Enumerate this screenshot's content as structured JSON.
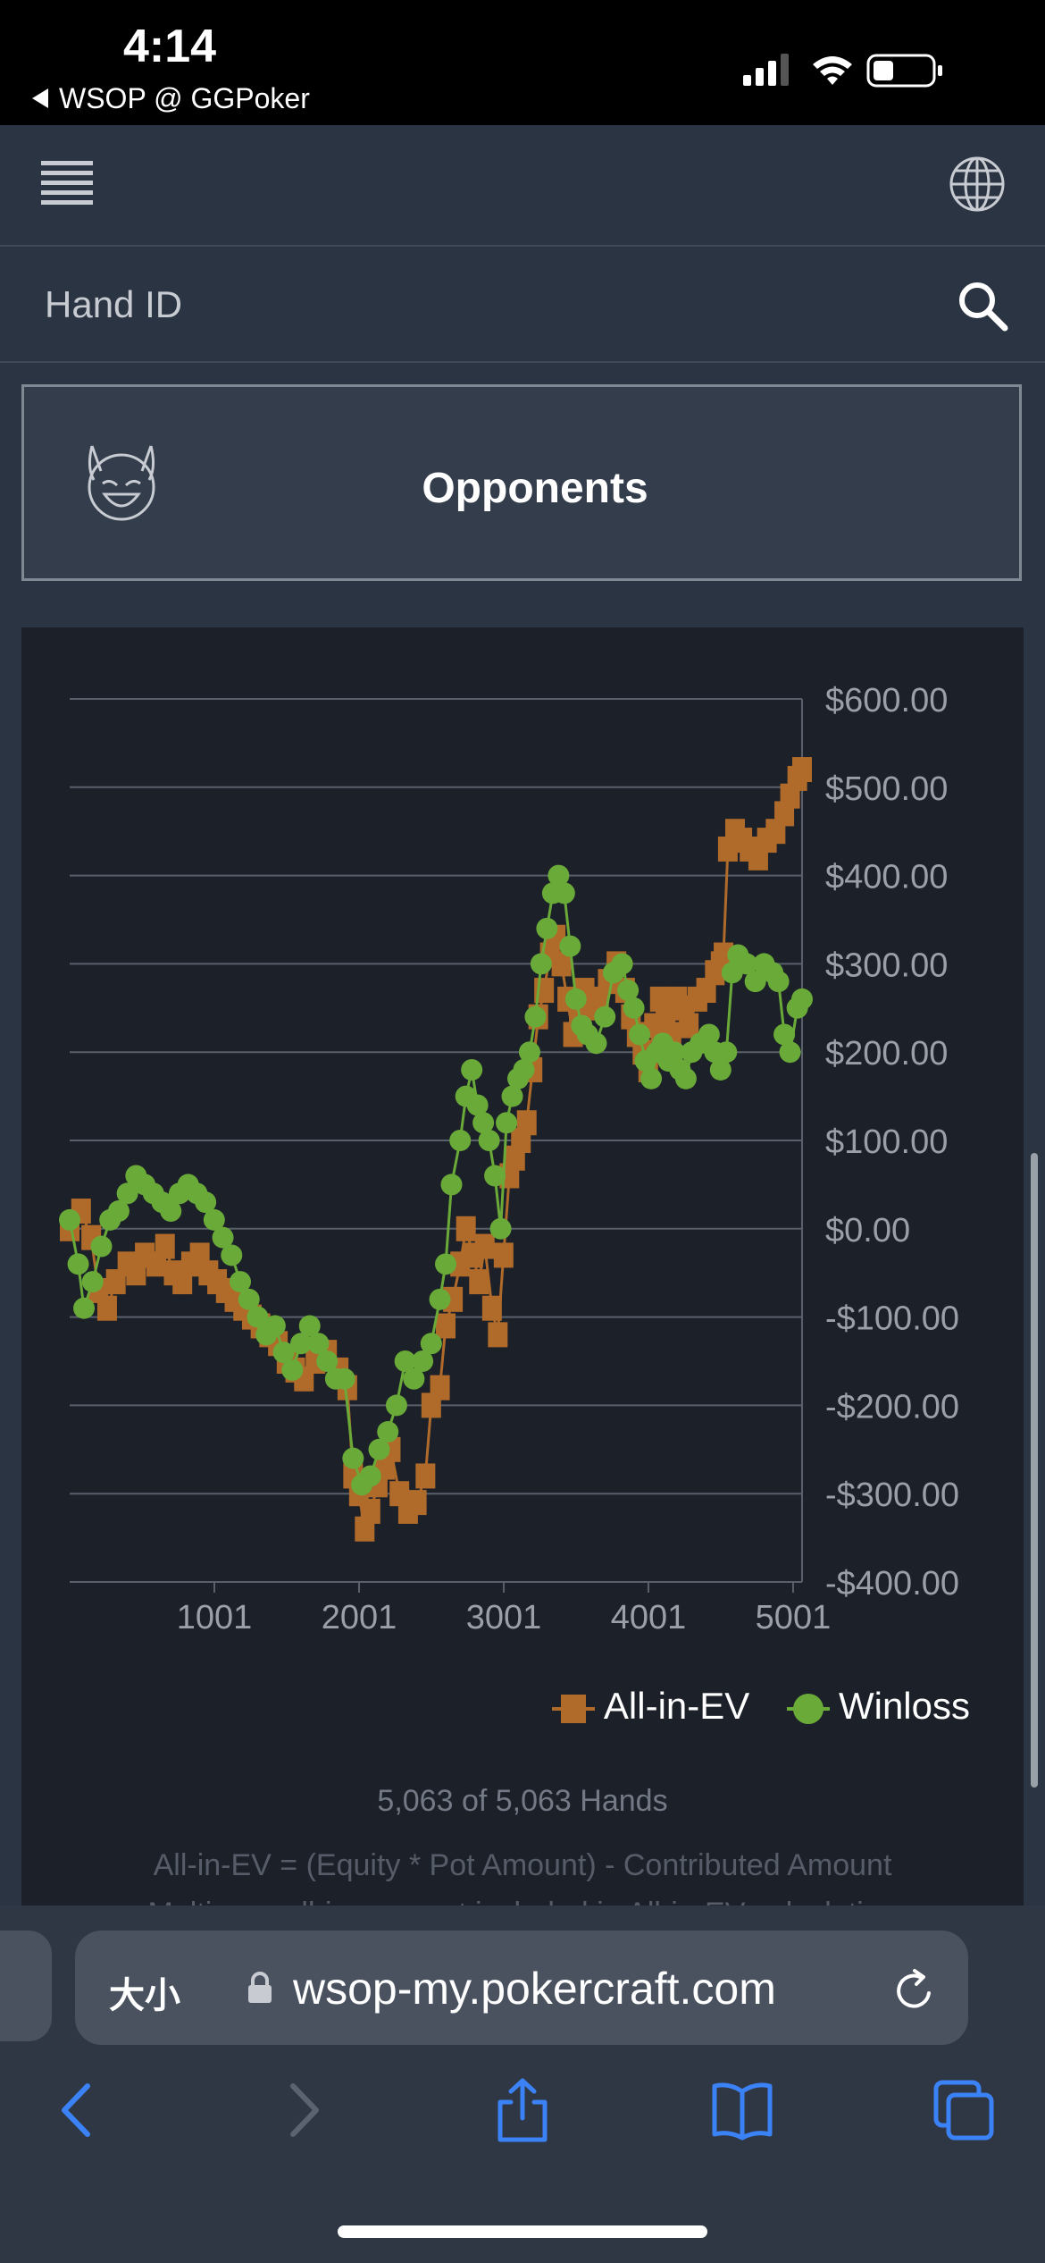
{
  "status_bar": {
    "time": "4:14",
    "back_app": "WSOP @ GGPoker"
  },
  "search": {
    "placeholder": "Hand ID"
  },
  "opponents": {
    "label": "Opponents"
  },
  "chart_data": {
    "type": "line",
    "x_ticks": [
      1001,
      2001,
      3001,
      4001,
      5001
    ],
    "x_tick_labels": [
      "1001",
      "2001",
      "3001",
      "4001",
      "5001"
    ],
    "y_ticks": [
      600,
      500,
      400,
      300,
      200,
      100,
      0,
      -100,
      -200,
      -300,
      -400
    ],
    "y_tick_labels": [
      "$600.00",
      "$500.00",
      "$400.00",
      "$300.00",
      "$200.00",
      "$100.00",
      "$0.00",
      "-$100.00",
      "-$200.00",
      "-$300.00",
      "-$400.00"
    ],
    "xlim": [
      1,
      5063
    ],
    "ylim": [
      -400,
      600
    ],
    "legend_position": "bottom-right",
    "grid": true,
    "series": [
      {
        "name": "All-in-EV",
        "color": "#b06a2a",
        "marker": "square",
        "points": [
          [
            1,
            0
          ],
          [
            80,
            20
          ],
          [
            150,
            -10
          ],
          [
            200,
            -70
          ],
          [
            260,
            -90
          ],
          [
            320,
            -60
          ],
          [
            400,
            -40
          ],
          [
            460,
            -50
          ],
          [
            520,
            -30
          ],
          [
            600,
            -40
          ],
          [
            660,
            -20
          ],
          [
            720,
            -50
          ],
          [
            780,
            -60
          ],
          [
            840,
            -40
          ],
          [
            900,
            -30
          ],
          [
            960,
            -50
          ],
          [
            1020,
            -60
          ],
          [
            1080,
            -70
          ],
          [
            1140,
            -80
          ],
          [
            1200,
            -90
          ],
          [
            1260,
            -100
          ],
          [
            1320,
            -110
          ],
          [
            1380,
            -120
          ],
          [
            1440,
            -130
          ],
          [
            1500,
            -150
          ],
          [
            1560,
            -160
          ],
          [
            1620,
            -170
          ],
          [
            1700,
            -150
          ],
          [
            1780,
            -140
          ],
          [
            1860,
            -160
          ],
          [
            1920,
            -180
          ],
          [
            1960,
            -280
          ],
          [
            2000,
            -300
          ],
          [
            2040,
            -340
          ],
          [
            2080,
            -320
          ],
          [
            2130,
            -290
          ],
          [
            2180,
            -270
          ],
          [
            2220,
            -250
          ],
          [
            2280,
            -300
          ],
          [
            2340,
            -320
          ],
          [
            2400,
            -310
          ],
          [
            2460,
            -280
          ],
          [
            2500,
            -200
          ],
          [
            2560,
            -180
          ],
          [
            2600,
            -110
          ],
          [
            2650,
            -80
          ],
          [
            2700,
            -40
          ],
          [
            2740,
            0
          ],
          [
            2790,
            -30
          ],
          [
            2830,
            -60
          ],
          [
            2870,
            -20
          ],
          [
            2920,
            -90
          ],
          [
            2960,
            -120
          ],
          [
            3000,
            -30
          ],
          [
            3040,
            60
          ],
          [
            3080,
            80
          ],
          [
            3120,
            100
          ],
          [
            3160,
            120
          ],
          [
            3200,
            180
          ],
          [
            3240,
            240
          ],
          [
            3280,
            270
          ],
          [
            3320,
            310
          ],
          [
            3360,
            330
          ],
          [
            3400,
            300
          ],
          [
            3440,
            260
          ],
          [
            3480,
            220
          ],
          [
            3520,
            240
          ],
          [
            3560,
            270
          ],
          [
            3600,
            250
          ],
          [
            3660,
            260
          ],
          [
            3720,
            280
          ],
          [
            3780,
            300
          ],
          [
            3840,
            270
          ],
          [
            3880,
            240
          ],
          [
            3920,
            220
          ],
          [
            3960,
            200
          ],
          [
            4000,
            180
          ],
          [
            4040,
            230
          ],
          [
            4080,
            260
          ],
          [
            4120,
            240
          ],
          [
            4160,
            220
          ],
          [
            4200,
            260
          ],
          [
            4240,
            250
          ],
          [
            4280,
            230
          ],
          [
            4340,
            260
          ],
          [
            4400,
            270
          ],
          [
            4460,
            290
          ],
          [
            4500,
            300
          ],
          [
            4520,
            310
          ],
          [
            4550,
            430
          ],
          [
            4600,
            450
          ],
          [
            4650,
            440
          ],
          [
            4700,
            430
          ],
          [
            4760,
            420
          ],
          [
            4820,
            440
          ],
          [
            4880,
            450
          ],
          [
            4940,
            470
          ],
          [
            4980,
            490
          ],
          [
            5030,
            510
          ],
          [
            5063,
            520
          ]
        ]
      },
      {
        "name": "Winloss",
        "color": "#6aaa38",
        "marker": "circle",
        "points": [
          [
            1,
            10
          ],
          [
            60,
            -40
          ],
          [
            100,
            -90
          ],
          [
            160,
            -60
          ],
          [
            220,
            -20
          ],
          [
            280,
            10
          ],
          [
            340,
            20
          ],
          [
            400,
            40
          ],
          [
            460,
            60
          ],
          [
            520,
            50
          ],
          [
            580,
            40
          ],
          [
            640,
            30
          ],
          [
            700,
            20
          ],
          [
            760,
            40
          ],
          [
            820,
            50
          ],
          [
            880,
            40
          ],
          [
            940,
            30
          ],
          [
            1000,
            10
          ],
          [
            1060,
            -10
          ],
          [
            1120,
            -30
          ],
          [
            1180,
            -60
          ],
          [
            1240,
            -80
          ],
          [
            1300,
            -100
          ],
          [
            1360,
            -120
          ],
          [
            1420,
            -110
          ],
          [
            1480,
            -140
          ],
          [
            1540,
            -160
          ],
          [
            1600,
            -130
          ],
          [
            1660,
            -110
          ],
          [
            1720,
            -130
          ],
          [
            1780,
            -150
          ],
          [
            1840,
            -170
          ],
          [
            1900,
            -170
          ],
          [
            1960,
            -260
          ],
          [
            2020,
            -290
          ],
          [
            2080,
            -280
          ],
          [
            2140,
            -250
          ],
          [
            2200,
            -230
          ],
          [
            2260,
            -200
          ],
          [
            2320,
            -150
          ],
          [
            2380,
            -170
          ],
          [
            2440,
            -150
          ],
          [
            2500,
            -130
          ],
          [
            2560,
            -80
          ],
          [
            2600,
            -40
          ],
          [
            2640,
            50
          ],
          [
            2700,
            100
          ],
          [
            2740,
            150
          ],
          [
            2780,
            180
          ],
          [
            2820,
            140
          ],
          [
            2860,
            120
          ],
          [
            2900,
            100
          ],
          [
            2940,
            60
          ],
          [
            2980,
            0
          ],
          [
            3020,
            120
          ],
          [
            3060,
            150
          ],
          [
            3100,
            170
          ],
          [
            3140,
            180
          ],
          [
            3180,
            200
          ],
          [
            3220,
            240
          ],
          [
            3260,
            300
          ],
          [
            3300,
            340
          ],
          [
            3340,
            380
          ],
          [
            3380,
            400
          ],
          [
            3420,
            380
          ],
          [
            3460,
            320
          ],
          [
            3500,
            260
          ],
          [
            3540,
            230
          ],
          [
            3580,
            220
          ],
          [
            3640,
            210
          ],
          [
            3700,
            240
          ],
          [
            3760,
            290
          ],
          [
            3820,
            300
          ],
          [
            3860,
            270
          ],
          [
            3900,
            250
          ],
          [
            3940,
            220
          ],
          [
            3980,
            190
          ],
          [
            4020,
            170
          ],
          [
            4060,
            200
          ],
          [
            4100,
            210
          ],
          [
            4140,
            190
          ],
          [
            4180,
            200
          ],
          [
            4220,
            180
          ],
          [
            4260,
            170
          ],
          [
            4300,
            200
          ],
          [
            4360,
            210
          ],
          [
            4420,
            220
          ],
          [
            4460,
            200
          ],
          [
            4500,
            180
          ],
          [
            4540,
            200
          ],
          [
            4580,
            290
          ],
          [
            4620,
            310
          ],
          [
            4680,
            300
          ],
          [
            4740,
            280
          ],
          [
            4800,
            300
          ],
          [
            4860,
            290
          ],
          [
            4900,
            280
          ],
          [
            4940,
            220
          ],
          [
            4980,
            200
          ],
          [
            5030,
            250
          ],
          [
            5063,
            260
          ]
        ]
      }
    ]
  },
  "chart": {
    "hands_count": "5,063 of 5,063 Hands",
    "formula": "All-in-EV = (Equity * Pot Amount) - Contributed Amount",
    "formula_cut": "Multi-way all-ins are not included in All-in-EV calculation"
  },
  "browser": {
    "aa_label": "大小",
    "url": "wsop-my.pokercraft.com"
  },
  "icons": [
    "menu-icon",
    "globe-icon",
    "search-icon",
    "devil-face-icon",
    "lock-icon",
    "reload-icon",
    "back-arrow-icon",
    "forward-arrow-icon",
    "share-icon",
    "bookmarks-icon",
    "tabs-icon"
  ]
}
